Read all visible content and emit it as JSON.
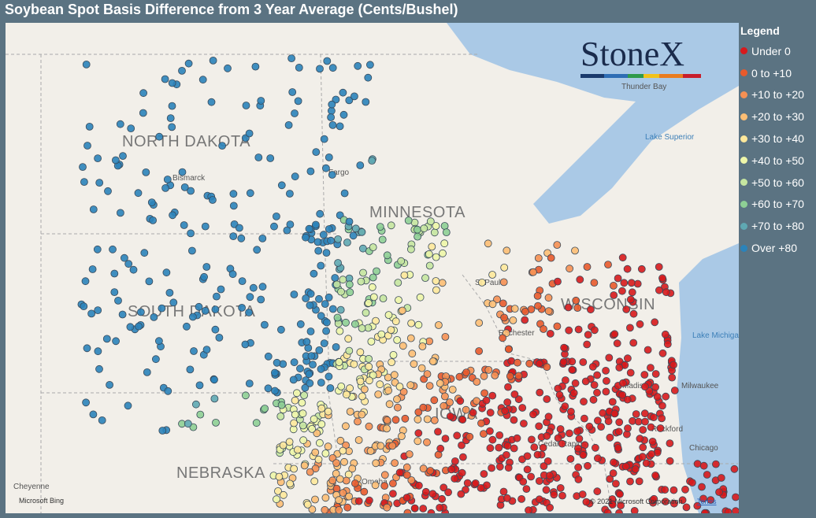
{
  "title": "Soybean Spot Basis Difference from 3 Year Average (Cents/Bushel)",
  "legend": {
    "title": "Legend",
    "items": [
      {
        "label": "Under 0",
        "color": "#d7191c"
      },
      {
        "label": "0 to +10",
        "color": "#e85a2c"
      },
      {
        "label": "+10 to +20",
        "color": "#f59053"
      },
      {
        "label": "+20 to +30",
        "color": "#fdbe74"
      },
      {
        "label": "+30 to +40",
        "color": "#fee89b"
      },
      {
        "label": "+40 to +50",
        "color": "#eef6a9"
      },
      {
        "label": "+50 to +60",
        "color": "#c5e6a0"
      },
      {
        "label": "+60 to +70",
        "color": "#8ecf95"
      },
      {
        "label": "+70 to +80",
        "color": "#5fa8b2"
      },
      {
        "label": "Over +80",
        "color": "#2b83ba"
      }
    ]
  },
  "map": {
    "states": [
      "NORTH DAKOTA",
      "MINNESOTA",
      "SOUTH DAKOTA",
      "WISCONSIN",
      "NEBRASKA",
      "IOWA"
    ],
    "cities": [
      "Bismarck",
      "Fargo",
      "St Paul",
      "Rochester",
      "Madison",
      "Milwaukee",
      "Rockford",
      "Chicago",
      "Cedar Rapids",
      "Omaha",
      "Cheyenne",
      "Thunder Bay"
    ],
    "lakes": [
      "Lake Superior",
      "Lake Michigan"
    ],
    "logo": "StoneX",
    "attribution": "© 2021 Microsoft Corporation",
    "terms": "Terms",
    "provider": "Microsoft Bing"
  }
}
